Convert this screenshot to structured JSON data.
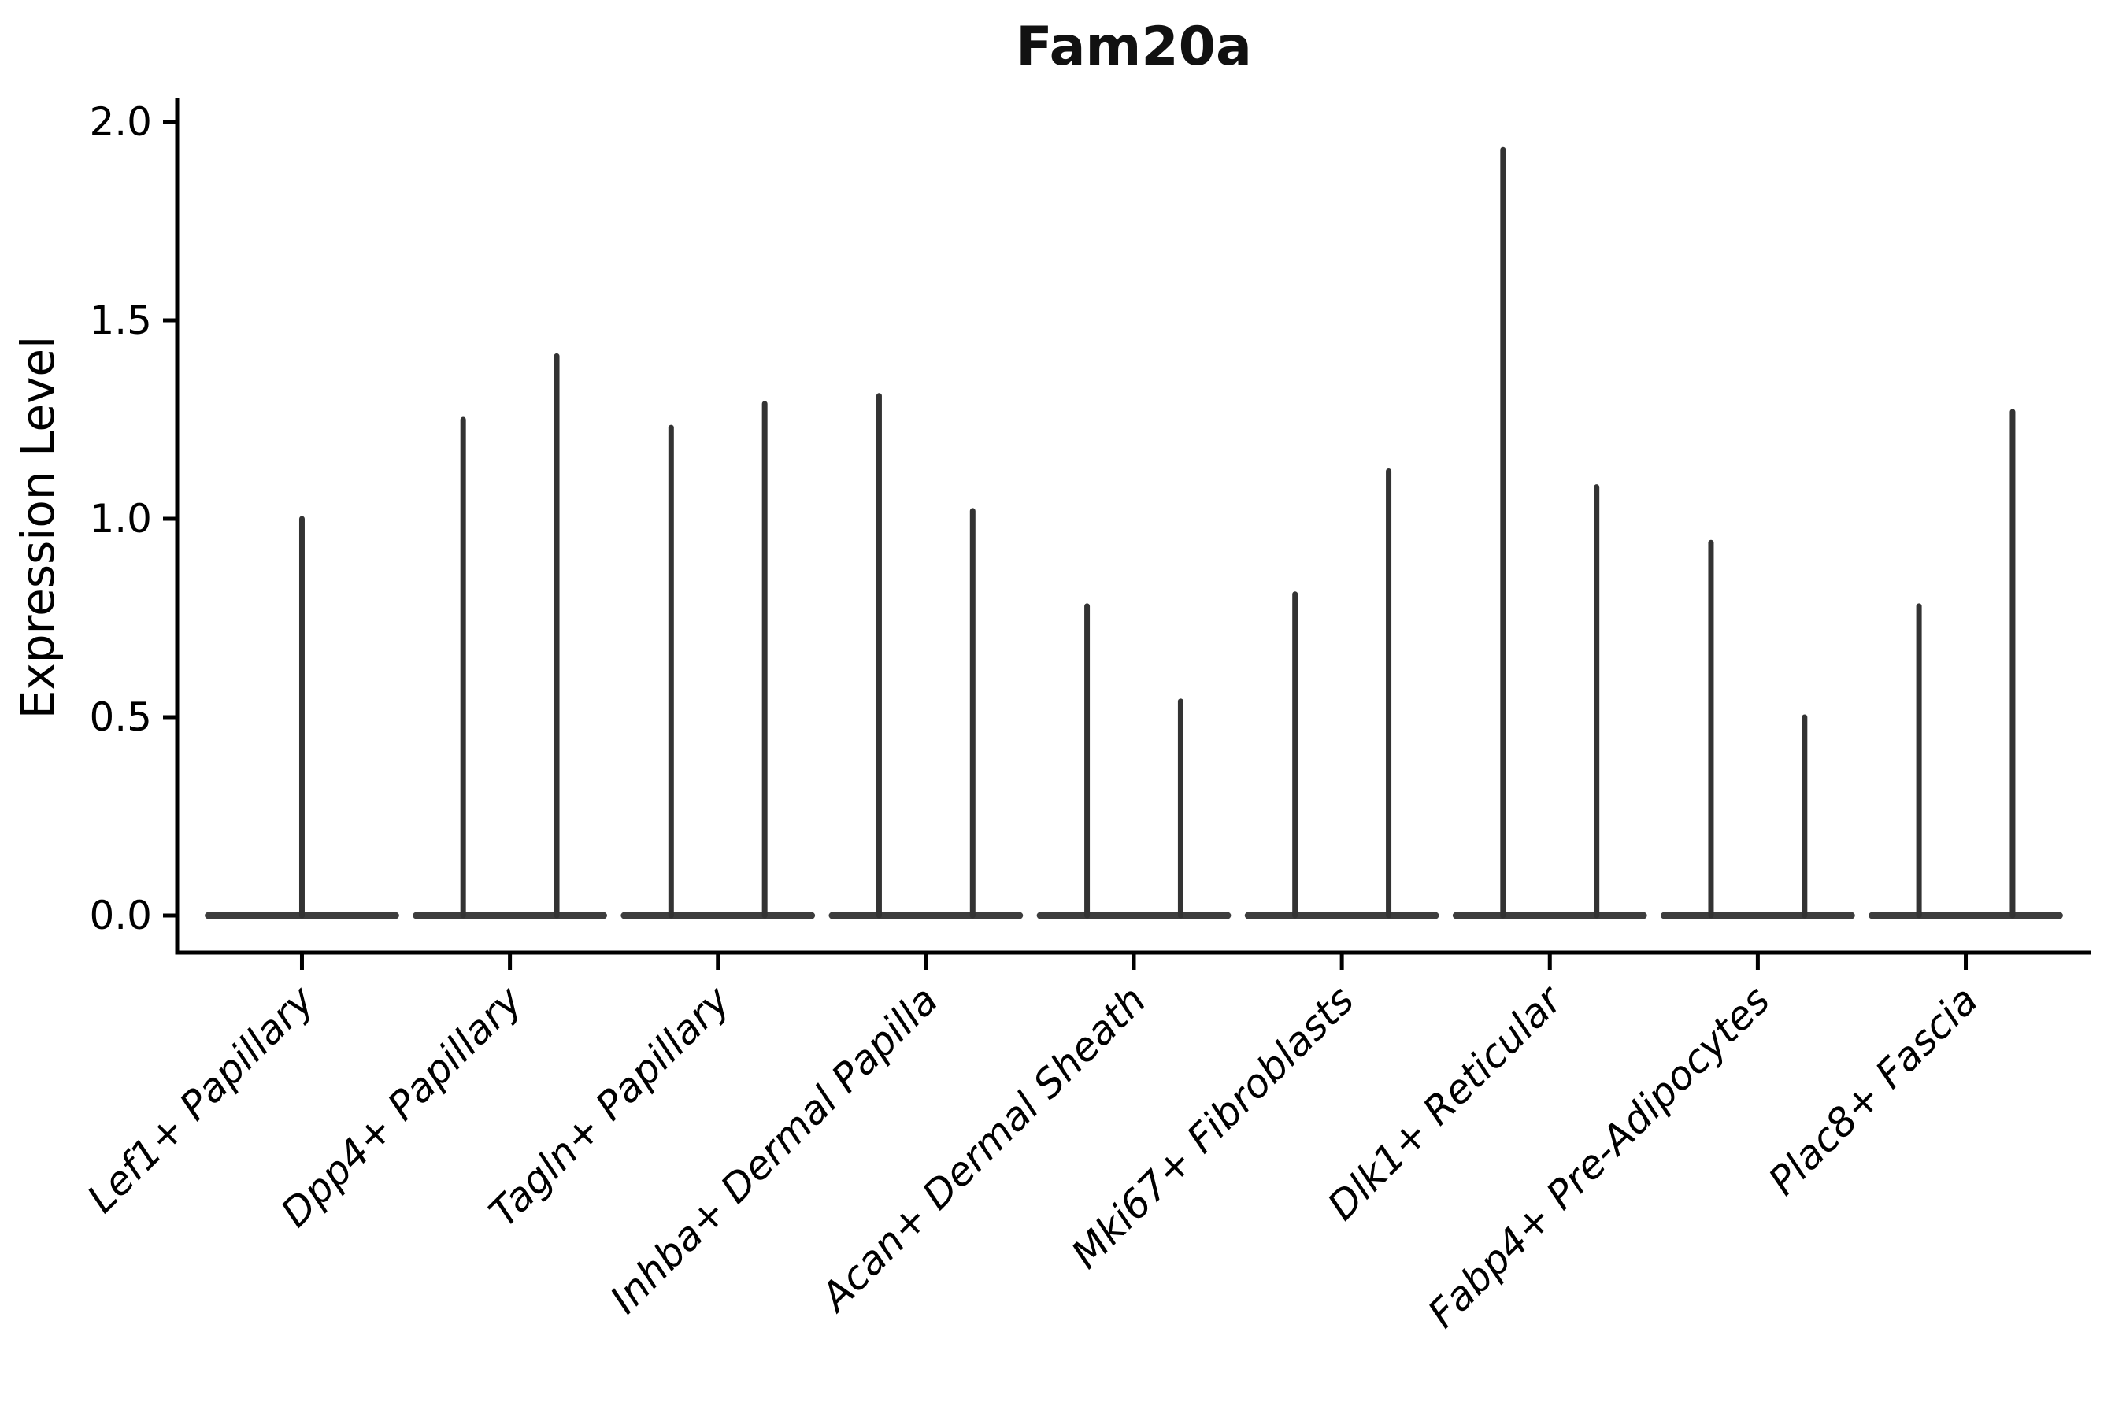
{
  "chart_data": {
    "type": "violin",
    "title": "Fam20a",
    "ylabel": "Expression Level",
    "xlabel": "",
    "ylim": [
      0.0,
      2.0
    ],
    "yticks": [
      0.0,
      0.5,
      1.0,
      1.5,
      2.0
    ],
    "grid": false,
    "legend": "none",
    "violin_style": "collapsed-at-zero-flat-baseline-with-thin-spike-to-max",
    "colors": {
      "violin_stroke": "#333333",
      "baseline_stroke": "#3d3d3d",
      "axis": "#000000",
      "background": "#ffffff"
    },
    "categories": [
      "Lef1+ Papillary",
      "Dpp4+ Papillary",
      "Tagln+ Papillary",
      "Inhba+ Dermal Papilla",
      "Acan+ Dermal Sheath",
      "Mki67+ Fibroblasts",
      "Dlk1+ Reticular",
      "Fabp4+ Pre-Adipocytes",
      "Plac8+ Fascia"
    ],
    "violins": [
      {
        "category": "Lef1+ Papillary",
        "spike_maxima": [
          1.0
        ]
      },
      {
        "category": "Dpp4+ Papillary",
        "spike_maxima": [
          1.25,
          1.41
        ]
      },
      {
        "category": "Tagln+ Papillary",
        "spike_maxima": [
          1.23,
          1.29
        ]
      },
      {
        "category": "Inhba+ Dermal Papilla",
        "spike_maxima": [
          1.31,
          1.02
        ]
      },
      {
        "category": "Acan+ Dermal Sheath",
        "spike_maxima": [
          0.78,
          0.54
        ]
      },
      {
        "category": "Mki67+ Fibroblasts",
        "spike_maxima": [
          0.81,
          1.12
        ]
      },
      {
        "category": "Dlk1+ Reticular",
        "spike_maxima": [
          1.93,
          1.08
        ]
      },
      {
        "category": "Fabp4+ Pre-Adipocytes",
        "spike_maxima": [
          0.94,
          0.5
        ]
      },
      {
        "category": "Plac8+ Fascia",
        "spike_maxima": [
          0.78,
          1.27
        ]
      }
    ]
  }
}
